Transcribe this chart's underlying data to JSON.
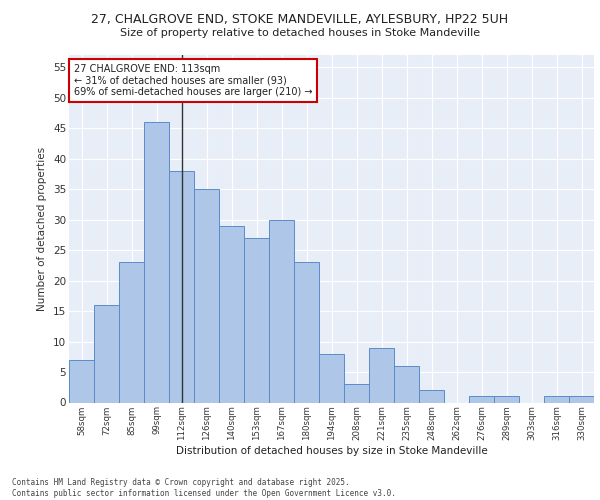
{
  "title1": "27, CHALGROVE END, STOKE MANDEVILLE, AYLESBURY, HP22 5UH",
  "title2": "Size of property relative to detached houses in Stoke Mandeville",
  "xlabel": "Distribution of detached houses by size in Stoke Mandeville",
  "ylabel": "Number of detached properties",
  "categories": [
    "58sqm",
    "72sqm",
    "85sqm",
    "99sqm",
    "112sqm",
    "126sqm",
    "140sqm",
    "153sqm",
    "167sqm",
    "180sqm",
    "194sqm",
    "208sqm",
    "221sqm",
    "235sqm",
    "248sqm",
    "262sqm",
    "276sqm",
    "289sqm",
    "303sqm",
    "316sqm",
    "330sqm"
  ],
  "values": [
    7,
    16,
    23,
    46,
    38,
    35,
    29,
    27,
    30,
    23,
    8,
    3,
    9,
    6,
    2,
    0,
    1,
    1,
    0,
    1,
    1
  ],
  "bar_color": "#aec6e8",
  "bar_edge_color": "#5b8cc8",
  "highlight_index": 4,
  "highlight_line_color": "#333333",
  "annotation_text": "27 CHALGROVE END: 113sqm\n← 31% of detached houses are smaller (93)\n69% of semi-detached houses are larger (210) →",
  "annotation_box_color": "#ffffff",
  "annotation_border_color": "#cc0000",
  "ylim": [
    0,
    57
  ],
  "yticks": [
    0,
    5,
    10,
    15,
    20,
    25,
    30,
    35,
    40,
    45,
    50,
    55
  ],
  "bg_color": "#e8eef8",
  "grid_color": "#ffffff",
  "footer_line1": "Contains HM Land Registry data © Crown copyright and database right 2025.",
  "footer_line2": "Contains public sector information licensed under the Open Government Licence v3.0."
}
